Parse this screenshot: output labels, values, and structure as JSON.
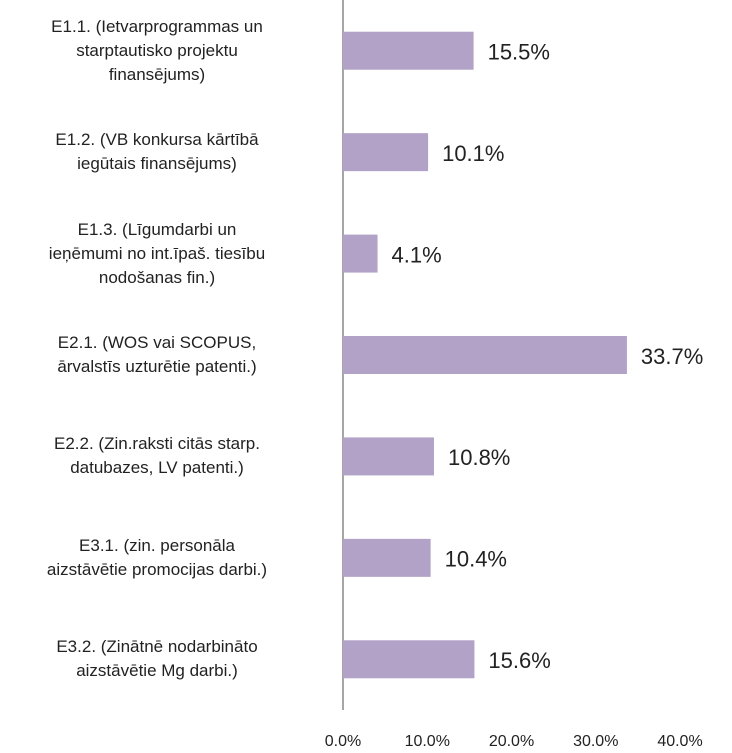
{
  "chart_data": {
    "type": "barh",
    "categories": [
      "E1.1. (Ietvarprogrammas un\nstarptautisko projektu\nfinansējums)",
      "E1.2. (VB konkursa kārtībā\niegūtais finansējums)",
      "E1.3. (Līgumdarbi un\nieņēmumi no int.īpaš. tiesību\nnodošanas fin.)",
      "E2.1. (WOS vai SCOPUS,\nārvalstīs uzturētie patenti.)",
      "E2.2. (Zin.raksti citās starp.\ndatubazes, LV patenti.)",
      "E3.1. (zin. personāla\naizstāvētie promocijas darbi.)",
      "E3.2. (Zinātnē nodarbināto\naizstāvētie Mg darbi.)"
    ],
    "values": [
      15.5,
      10.1,
      4.1,
      33.7,
      10.8,
      10.4,
      15.6
    ],
    "value_labels": [
      "15.5%",
      "10.1%",
      "4.1%",
      "33.7%",
      "10.8%",
      "10.4%",
      "15.6%"
    ],
    "color": "#b3a2c7",
    "xlim": [
      0,
      40
    ],
    "xticks": [
      {
        "value": 0,
        "label": "0.0%"
      },
      {
        "value": 10,
        "label": "10.0%"
      },
      {
        "value": 20,
        "label": "20.0%"
      },
      {
        "value": 30,
        "label": "30.0%"
      },
      {
        "value": 40,
        "label": "40.0%"
      }
    ],
    "grid": false
  }
}
